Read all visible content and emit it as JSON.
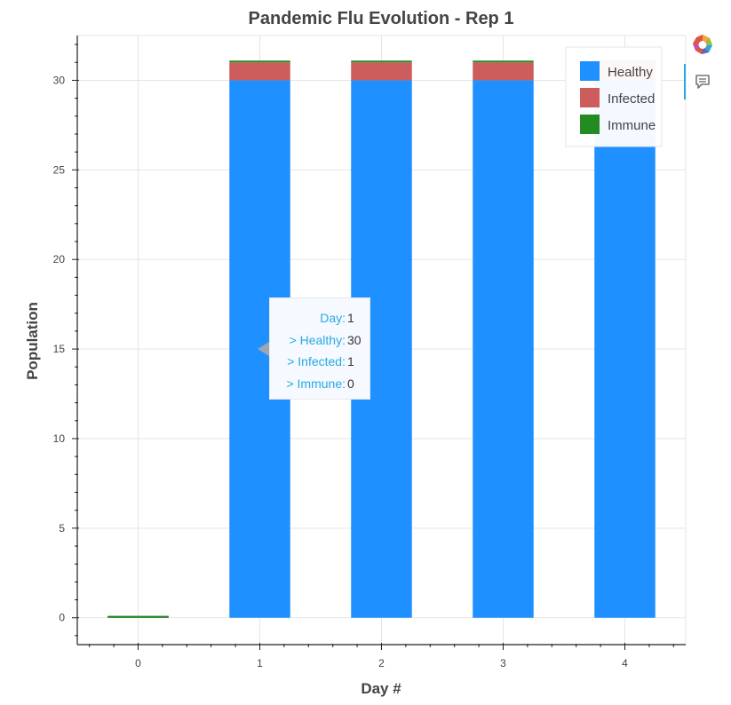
{
  "chart_data": {
    "type": "bar",
    "stacked": true,
    "title": "Pandemic Flu Evolution - Rep 1",
    "xlabel": "Day #",
    "ylabel": "Population",
    "categories": [
      "0",
      "1",
      "2",
      "3",
      "4"
    ],
    "x_ticks": [
      "0",
      "1",
      "2",
      "3",
      "4"
    ],
    "y_ticks": [
      "0",
      "5",
      "10",
      "15",
      "20",
      "25",
      "30"
    ],
    "ylim": [
      -1.5,
      32.5
    ],
    "xlim": [
      -0.5,
      4.5
    ],
    "grid": true,
    "legend_position": "top-right",
    "series": [
      {
        "name": "Healthy",
        "color": "#1e90ff",
        "values": [
          0,
          30,
          30,
          30,
          30
        ]
      },
      {
        "name": "Infected",
        "color": "#cd5c5c",
        "values": [
          0,
          1,
          1,
          1,
          1
        ]
      },
      {
        "name": "Immune",
        "color": "#228b22",
        "values": [
          0,
          0,
          0,
          0,
          0
        ]
      }
    ]
  },
  "tooltip": {
    "rows": [
      {
        "key": "Day:",
        "value": "1"
      },
      {
        "key": "> Healthy:",
        "value": "30"
      },
      {
        "key": "> Infected:",
        "value": "1"
      },
      {
        "key": "> Immune:",
        "value": "0"
      }
    ]
  },
  "toolbar": {
    "tools": [
      {
        "icon": "bokeh-logo-icon"
      },
      {
        "icon": "hover-tooltip-icon"
      }
    ]
  }
}
